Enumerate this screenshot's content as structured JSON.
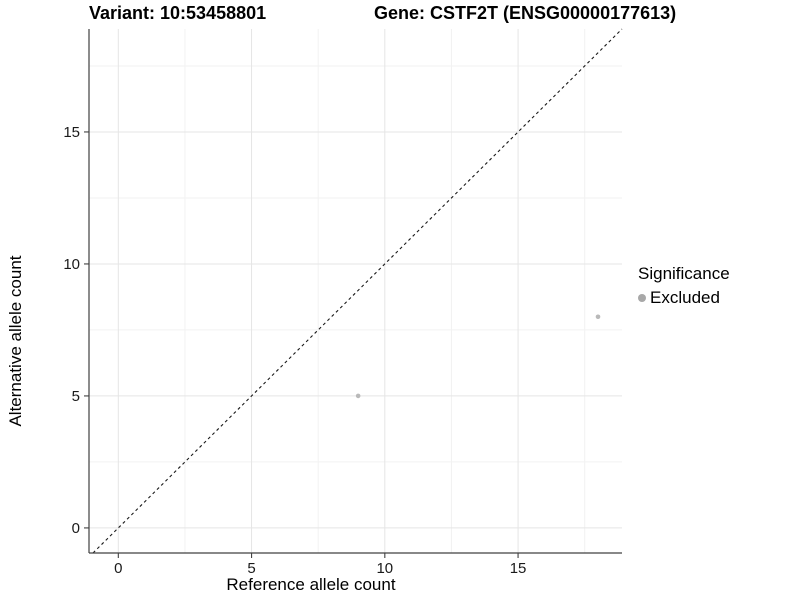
{
  "chart_data": {
    "type": "scatter",
    "title_left": "Variant: 10:53458801",
    "title_right": "Gene: CSTF2T (ENSG00000177613)",
    "xlabel": "Reference allele count",
    "ylabel": "Alternative allele count",
    "xlim": [
      -1.1,
      18.9
    ],
    "ylim": [
      -0.95,
      18.9
    ],
    "x_ticks": [
      0,
      5,
      10,
      15
    ],
    "y_ticks": [
      0,
      5,
      10,
      15
    ],
    "x_minor_ticks": [
      2.5,
      7.5,
      12.5,
      17.5
    ],
    "y_minor_ticks": [
      2.5,
      7.5,
      12.5,
      17.5
    ],
    "grid": true,
    "identity_line": {
      "type": "dashed",
      "equation": "y = x"
    },
    "series": [
      {
        "name": "Excluded",
        "color": "#b9b9b9",
        "points": [
          {
            "x": 9,
            "y": 5
          },
          {
            "x": 18,
            "y": 8
          }
        ]
      }
    ],
    "legend": {
      "position": "right",
      "title": "Significance",
      "items": [
        {
          "label": "Excluded",
          "color": "#a8a8a8"
        }
      ]
    },
    "colors": {
      "background": "#ffffff",
      "grid_major": "#e5e5e5",
      "grid_minor": "#f2f2f2",
      "axis_line": "#404040",
      "tick_label": "#1a1a1a",
      "identity_line": "#1a1a1a"
    }
  }
}
